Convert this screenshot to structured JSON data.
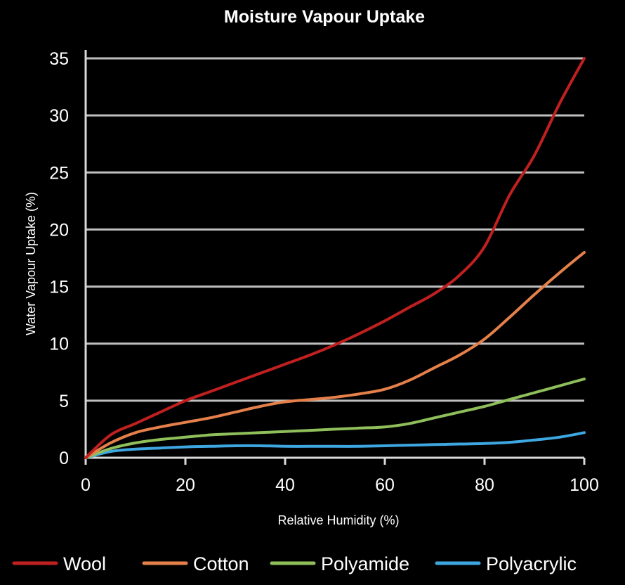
{
  "chart_data": {
    "type": "line",
    "title": "Moisture Vapour Uptake",
    "xlabel": "Relative Humidity (%)",
    "ylabel": "Water Vapour Uptake (%)",
    "xlim": [
      0,
      100
    ],
    "ylim": [
      0,
      35
    ],
    "xticks": [
      0,
      20,
      40,
      60,
      80,
      100
    ],
    "yticks": [
      0,
      5,
      10,
      15,
      20,
      25,
      30,
      35
    ],
    "grid": true,
    "legend_position": "bottom",
    "x": [
      0,
      5,
      10,
      15,
      20,
      25,
      30,
      35,
      40,
      45,
      50,
      55,
      60,
      65,
      70,
      75,
      80,
      85,
      90,
      95,
      100
    ],
    "series": [
      {
        "name": "Wool",
        "color": "#c0201f",
        "values": [
          0,
          2.0,
          3.0,
          4.0,
          5.0,
          5.8,
          6.6,
          7.4,
          8.2,
          9.0,
          9.9,
          10.9,
          12.0,
          13.2,
          14.4,
          16.0,
          18.5,
          23.0,
          26.5,
          31.0,
          35.0
        ]
      },
      {
        "name": "Cotton",
        "color": "#e5804a",
        "values": [
          0,
          1.3,
          2.2,
          2.7,
          3.1,
          3.5,
          4.0,
          4.5,
          4.9,
          5.1,
          5.3,
          5.6,
          6.0,
          6.8,
          7.9,
          9.0,
          10.4,
          12.3,
          14.3,
          16.2,
          18.0
        ]
      },
      {
        "name": "Polyamide",
        "color": "#8fbf5a",
        "values": [
          0,
          0.8,
          1.3,
          1.6,
          1.8,
          2.0,
          2.1,
          2.2,
          2.3,
          2.4,
          2.5,
          2.6,
          2.7,
          3.0,
          3.5,
          4.0,
          4.5,
          5.1,
          5.7,
          6.3,
          6.9
        ]
      },
      {
        "name": "Polyacrylic",
        "color": "#3ea6e0",
        "values": [
          0,
          0.55,
          0.75,
          0.85,
          0.95,
          1.0,
          1.05,
          1.05,
          1.0,
          1.0,
          1.0,
          1.0,
          1.05,
          1.1,
          1.15,
          1.2,
          1.25,
          1.35,
          1.55,
          1.8,
          2.2
        ]
      }
    ]
  },
  "colors": {
    "background": "#000000",
    "text": "#ffffff",
    "grid": "#bfbfbf",
    "axis": "#d9d9d9"
  }
}
